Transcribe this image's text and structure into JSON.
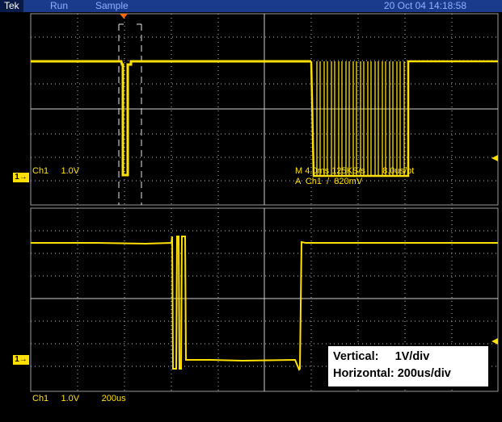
{
  "status_bar": {
    "brand": "Tek",
    "run_state": "Run",
    "acquire_mode": "Sample",
    "datetime": "20 Oct 04 14:18:58"
  },
  "top_panel": {
    "channel_marker": "1",
    "channel_scale": "Ch1     1.0V",
    "timebase_readout": "M 4.0ms 125KS/s       8.0us/pt",
    "trigger_readout": "A  Ch1  /  820mV"
  },
  "bottom_panel": {
    "channel_marker": "1",
    "bottom_readout": "Ch1     1.0V         200us"
  },
  "info_box": {
    "vertical_label": "Vertical:     1V/div",
    "horizontal_label": "Horizontal: 200us/div"
  },
  "colors": {
    "trace": "#ffe000",
    "grid": "#ffffff",
    "status_bar": "#1a3a8c",
    "trigger_marker": "#ff6a00"
  }
}
